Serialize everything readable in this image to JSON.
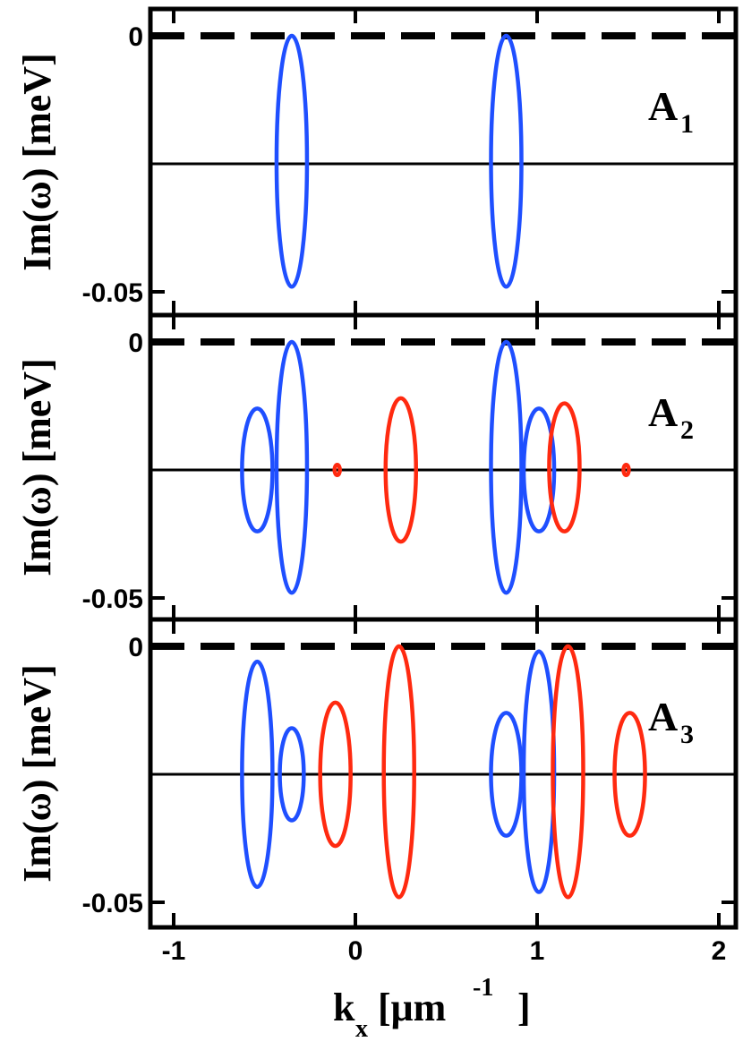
{
  "chart_data": {
    "type": "scatter",
    "xlabel": {
      "main": "k",
      "sub": "x",
      "unit": "[μm",
      "sup": "-1",
      "close": "]"
    },
    "xlim": [
      -1.1,
      2.1
    ],
    "x_ticks": [
      "-1",
      "0",
      "1",
      "2"
    ],
    "x_tick_values": [
      -1,
      0,
      1,
      2
    ],
    "colors": {
      "blue": "#1f4fff",
      "red": "#ff2a10",
      "axis": "#000000"
    },
    "panels": [
      {
        "label_main": "A",
        "label_sub": "1",
        "ylabel": "Im(ω)  [meV]",
        "ylim": [
          -0.052,
          0.002
        ],
        "y_ticks": [
          "0",
          "-0.05"
        ],
        "y_tick_values": [
          0,
          -0.05
        ],
        "reference_lines": [
          {
            "y": 0,
            "style": "dashed"
          },
          {
            "y": -0.025,
            "style": "solid"
          }
        ],
        "ellipses": [
          {
            "series": "blue",
            "x": -0.35,
            "y_top": 0.0,
            "y_bottom": -0.049
          },
          {
            "series": "blue",
            "x": 0.83,
            "y_top": 0.0,
            "y_bottom": -0.049
          }
        ]
      },
      {
        "label_main": "A",
        "label_sub": "2",
        "ylabel": "Im(ω)  [meV]",
        "ylim": [
          -0.052,
          0.002
        ],
        "y_ticks": [
          "0",
          "-0.05"
        ],
        "y_tick_values": [
          0,
          -0.05
        ],
        "reference_lines": [
          {
            "y": 0,
            "style": "dashed"
          },
          {
            "y": -0.025,
            "style": "solid"
          }
        ],
        "ellipses": [
          {
            "series": "blue",
            "x": -0.54,
            "y_top": -0.013,
            "y_bottom": -0.037
          },
          {
            "series": "blue",
            "x": -0.35,
            "y_top": 0.0,
            "y_bottom": -0.049
          },
          {
            "series": "red",
            "x": -0.1,
            "y_top": -0.024,
            "y_bottom": -0.026
          },
          {
            "series": "red",
            "x": 0.25,
            "y_top": -0.011,
            "y_bottom": -0.039
          },
          {
            "series": "blue",
            "x": 0.83,
            "y_top": 0.0,
            "y_bottom": -0.049
          },
          {
            "series": "blue",
            "x": 1.01,
            "y_top": -0.013,
            "y_bottom": -0.037
          },
          {
            "series": "red",
            "x": 1.15,
            "y_top": -0.012,
            "y_bottom": -0.037
          },
          {
            "series": "red",
            "x": 1.49,
            "y_top": -0.024,
            "y_bottom": -0.026
          }
        ]
      },
      {
        "label_main": "A",
        "label_sub": "3",
        "ylabel": "Im(ω)  [meV]",
        "ylim": [
          -0.052,
          0.002
        ],
        "y_ticks": [
          "0",
          "-0.05"
        ],
        "y_tick_values": [
          0,
          -0.05
        ],
        "reference_lines": [
          {
            "y": 0,
            "style": "dashed"
          },
          {
            "y": -0.025,
            "style": "solid"
          }
        ],
        "ellipses": [
          {
            "series": "blue",
            "x": -0.54,
            "y_top": -0.003,
            "y_bottom": -0.047
          },
          {
            "series": "blue",
            "x": -0.35,
            "y_top": -0.016,
            "y_bottom": -0.034
          },
          {
            "series": "red",
            "x": -0.11,
            "y_top": -0.011,
            "y_bottom": -0.039
          },
          {
            "series": "red",
            "x": 0.24,
            "y_top": 0.0,
            "y_bottom": -0.049
          },
          {
            "series": "blue",
            "x": 0.83,
            "y_top": -0.013,
            "y_bottom": -0.037
          },
          {
            "series": "blue",
            "x": 1.01,
            "y_top": -0.001,
            "y_bottom": -0.048
          },
          {
            "series": "red",
            "x": 1.17,
            "y_top": 0.0,
            "y_bottom": -0.049
          },
          {
            "series": "red",
            "x": 1.51,
            "y_top": -0.013,
            "y_bottom": -0.037
          }
        ]
      }
    ]
  }
}
